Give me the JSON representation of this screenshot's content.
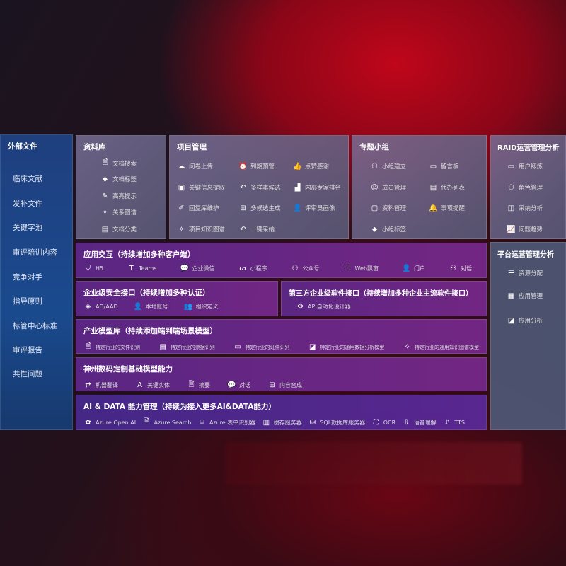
{
  "sidebar": {
    "title": "外部文件",
    "items": [
      "临床文献",
      "发补文件",
      "关键字池",
      "审评培训内容",
      "竞争对手",
      "指导原则",
      "标管中心标准",
      "审评报告",
      "共性问题"
    ]
  },
  "library": {
    "title": "资料库",
    "items": [
      {
        "icon": "doc-search",
        "label": "文档搜索"
      },
      {
        "icon": "tag",
        "label": "文档标签"
      },
      {
        "icon": "pen",
        "label": "高亮提示"
      },
      {
        "icon": "graph",
        "label": "关系图谱"
      },
      {
        "icon": "doc-classify",
        "label": "文档分类"
      }
    ]
  },
  "project": {
    "title": "项目管理",
    "items": [
      {
        "icon": "cloud-upload",
        "label": "问卷上传"
      },
      {
        "icon": "alarm",
        "label": "到期预警"
      },
      {
        "icon": "thumbs-up",
        "label": "点赞感谢"
      },
      {
        "icon": "extract",
        "label": "关键信息提取"
      },
      {
        "icon": "reply",
        "label": "多样本候选"
      },
      {
        "icon": "ranking",
        "label": "内部专家排名"
      },
      {
        "icon": "edit",
        "label": "回复库维护"
      },
      {
        "icon": "puzzle",
        "label": "多候选生成"
      },
      {
        "icon": "user",
        "label": "评审员画像"
      },
      {
        "icon": "graph",
        "label": "项目知识图谱"
      },
      {
        "icon": "reply",
        "label": "一键采纳"
      }
    ]
  },
  "group": {
    "title": "专题小组",
    "items": [
      {
        "icon": "users",
        "label": "小组建立"
      },
      {
        "icon": "bbs",
        "label": "留言板"
      },
      {
        "icon": "user-add",
        "label": "成员管理"
      },
      {
        "icon": "clipboard",
        "label": "代办列表"
      },
      {
        "icon": "folder",
        "label": "资料管理"
      },
      {
        "icon": "bell",
        "label": "事项提醒"
      },
      {
        "icon": "tag",
        "label": "小组标签"
      }
    ]
  },
  "raid": {
    "title": "RAID运营管理分析",
    "items": [
      {
        "icon": "id-card",
        "label": "用户锻炼"
      },
      {
        "icon": "users",
        "label": "角色管理"
      },
      {
        "icon": "qa",
        "label": "采纳分析"
      },
      {
        "icon": "trend",
        "label": "问题趋势"
      }
    ]
  },
  "platform": {
    "title": "平台运营管理分析",
    "items": [
      {
        "icon": "list",
        "label": "资源分配"
      },
      {
        "icon": "apps",
        "label": "应用管理"
      },
      {
        "icon": "chart",
        "label": "应用分析"
      }
    ]
  },
  "interaction": {
    "title": "应用交互（持续增加多种客户端）",
    "items": [
      "H5",
      "Teams",
      "企业微信",
      "小程序",
      "公众号",
      "Web飘窗",
      "门户",
      "对话"
    ]
  },
  "security": {
    "title": "企业级安全接口（持续增加多种认证）",
    "items": [
      "AD/AAD",
      "本地账号",
      "组织定义"
    ]
  },
  "thirdparty": {
    "title": "第三方企业级软件接口（持续增加多种企业主流软件接口）",
    "items": [
      "API自动化设计器"
    ]
  },
  "industry": {
    "title": "产业模型库（持续添加端到端场景模型）",
    "items": [
      "特定行业的文件识别",
      "特定行业的票据识别",
      "特定行业的证件识别",
      "特定行业的通用数据分析模型",
      "特定行业的通用知识图谱模型"
    ]
  },
  "base": {
    "title": "神州数码定制基础模型能力",
    "items": [
      "机器翻译",
      "关键实体",
      "摘要",
      "对话",
      "内容合成"
    ]
  },
  "aidata": {
    "title": "AI & DATA 能力管理（持续为接入更多AI&DATA能力）",
    "items": [
      "Azure Open AI",
      "Azure Search",
      "Azure 表单识别器",
      "缓存服务器",
      "SQL数据库服务器",
      "OCR",
      "语音理解",
      "TTS"
    ]
  }
}
